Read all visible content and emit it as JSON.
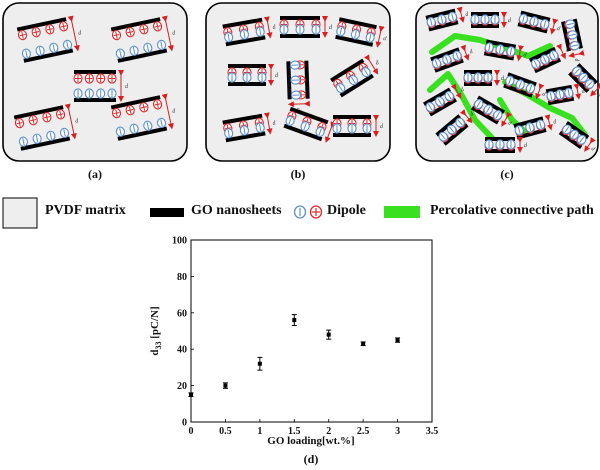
{
  "panels": {
    "a_label": "(a)",
    "b_label": "(b)",
    "c_label": "(c)",
    "d_label": "(d)",
    "spacing_symbol": "d"
  },
  "legend": {
    "matrix_label": "PVDF matrix",
    "nanosheet_label": "GO nanosheets",
    "dipole_label": "Dipole",
    "path_label": "Percolative connective path"
  },
  "colors": {
    "matrix": "#eeeeee",
    "nanosheet": "#000000",
    "dipole_positive": "#e0282c",
    "dipole_negative": "#5a8fd0",
    "percolation_path": "#38e020",
    "spacing_arrow": "#d81e1e"
  },
  "chart_data": {
    "type": "scatter",
    "xlabel": "GO loading[wt.%]",
    "ylabel_main": "d",
    "ylabel_sub": "33",
    "ylabel_rest": " [pC/N]",
    "xlim": [
      0,
      3.5
    ],
    "ylim": [
      0,
      100
    ],
    "xticks": [
      "0",
      "0.5",
      "1",
      "1.5",
      "2",
      "2.5",
      "3",
      "3.5"
    ],
    "yticks": [
      "0",
      "20",
      "40",
      "60",
      "80",
      "100"
    ],
    "grid": false,
    "points": [
      {
        "x": 0,
        "y": 15,
        "err": 1
      },
      {
        "x": 0.5,
        "y": 20,
        "err": 1.5
      },
      {
        "x": 1,
        "y": 32,
        "err": 3.5
      },
      {
        "x": 1.5,
        "y": 56,
        "err": 3
      },
      {
        "x": 2,
        "y": 48,
        "err": 2.5
      },
      {
        "x": 2.5,
        "y": 43,
        "err": 1
      },
      {
        "x": 3,
        "y": 45,
        "err": 1.2
      }
    ]
  }
}
